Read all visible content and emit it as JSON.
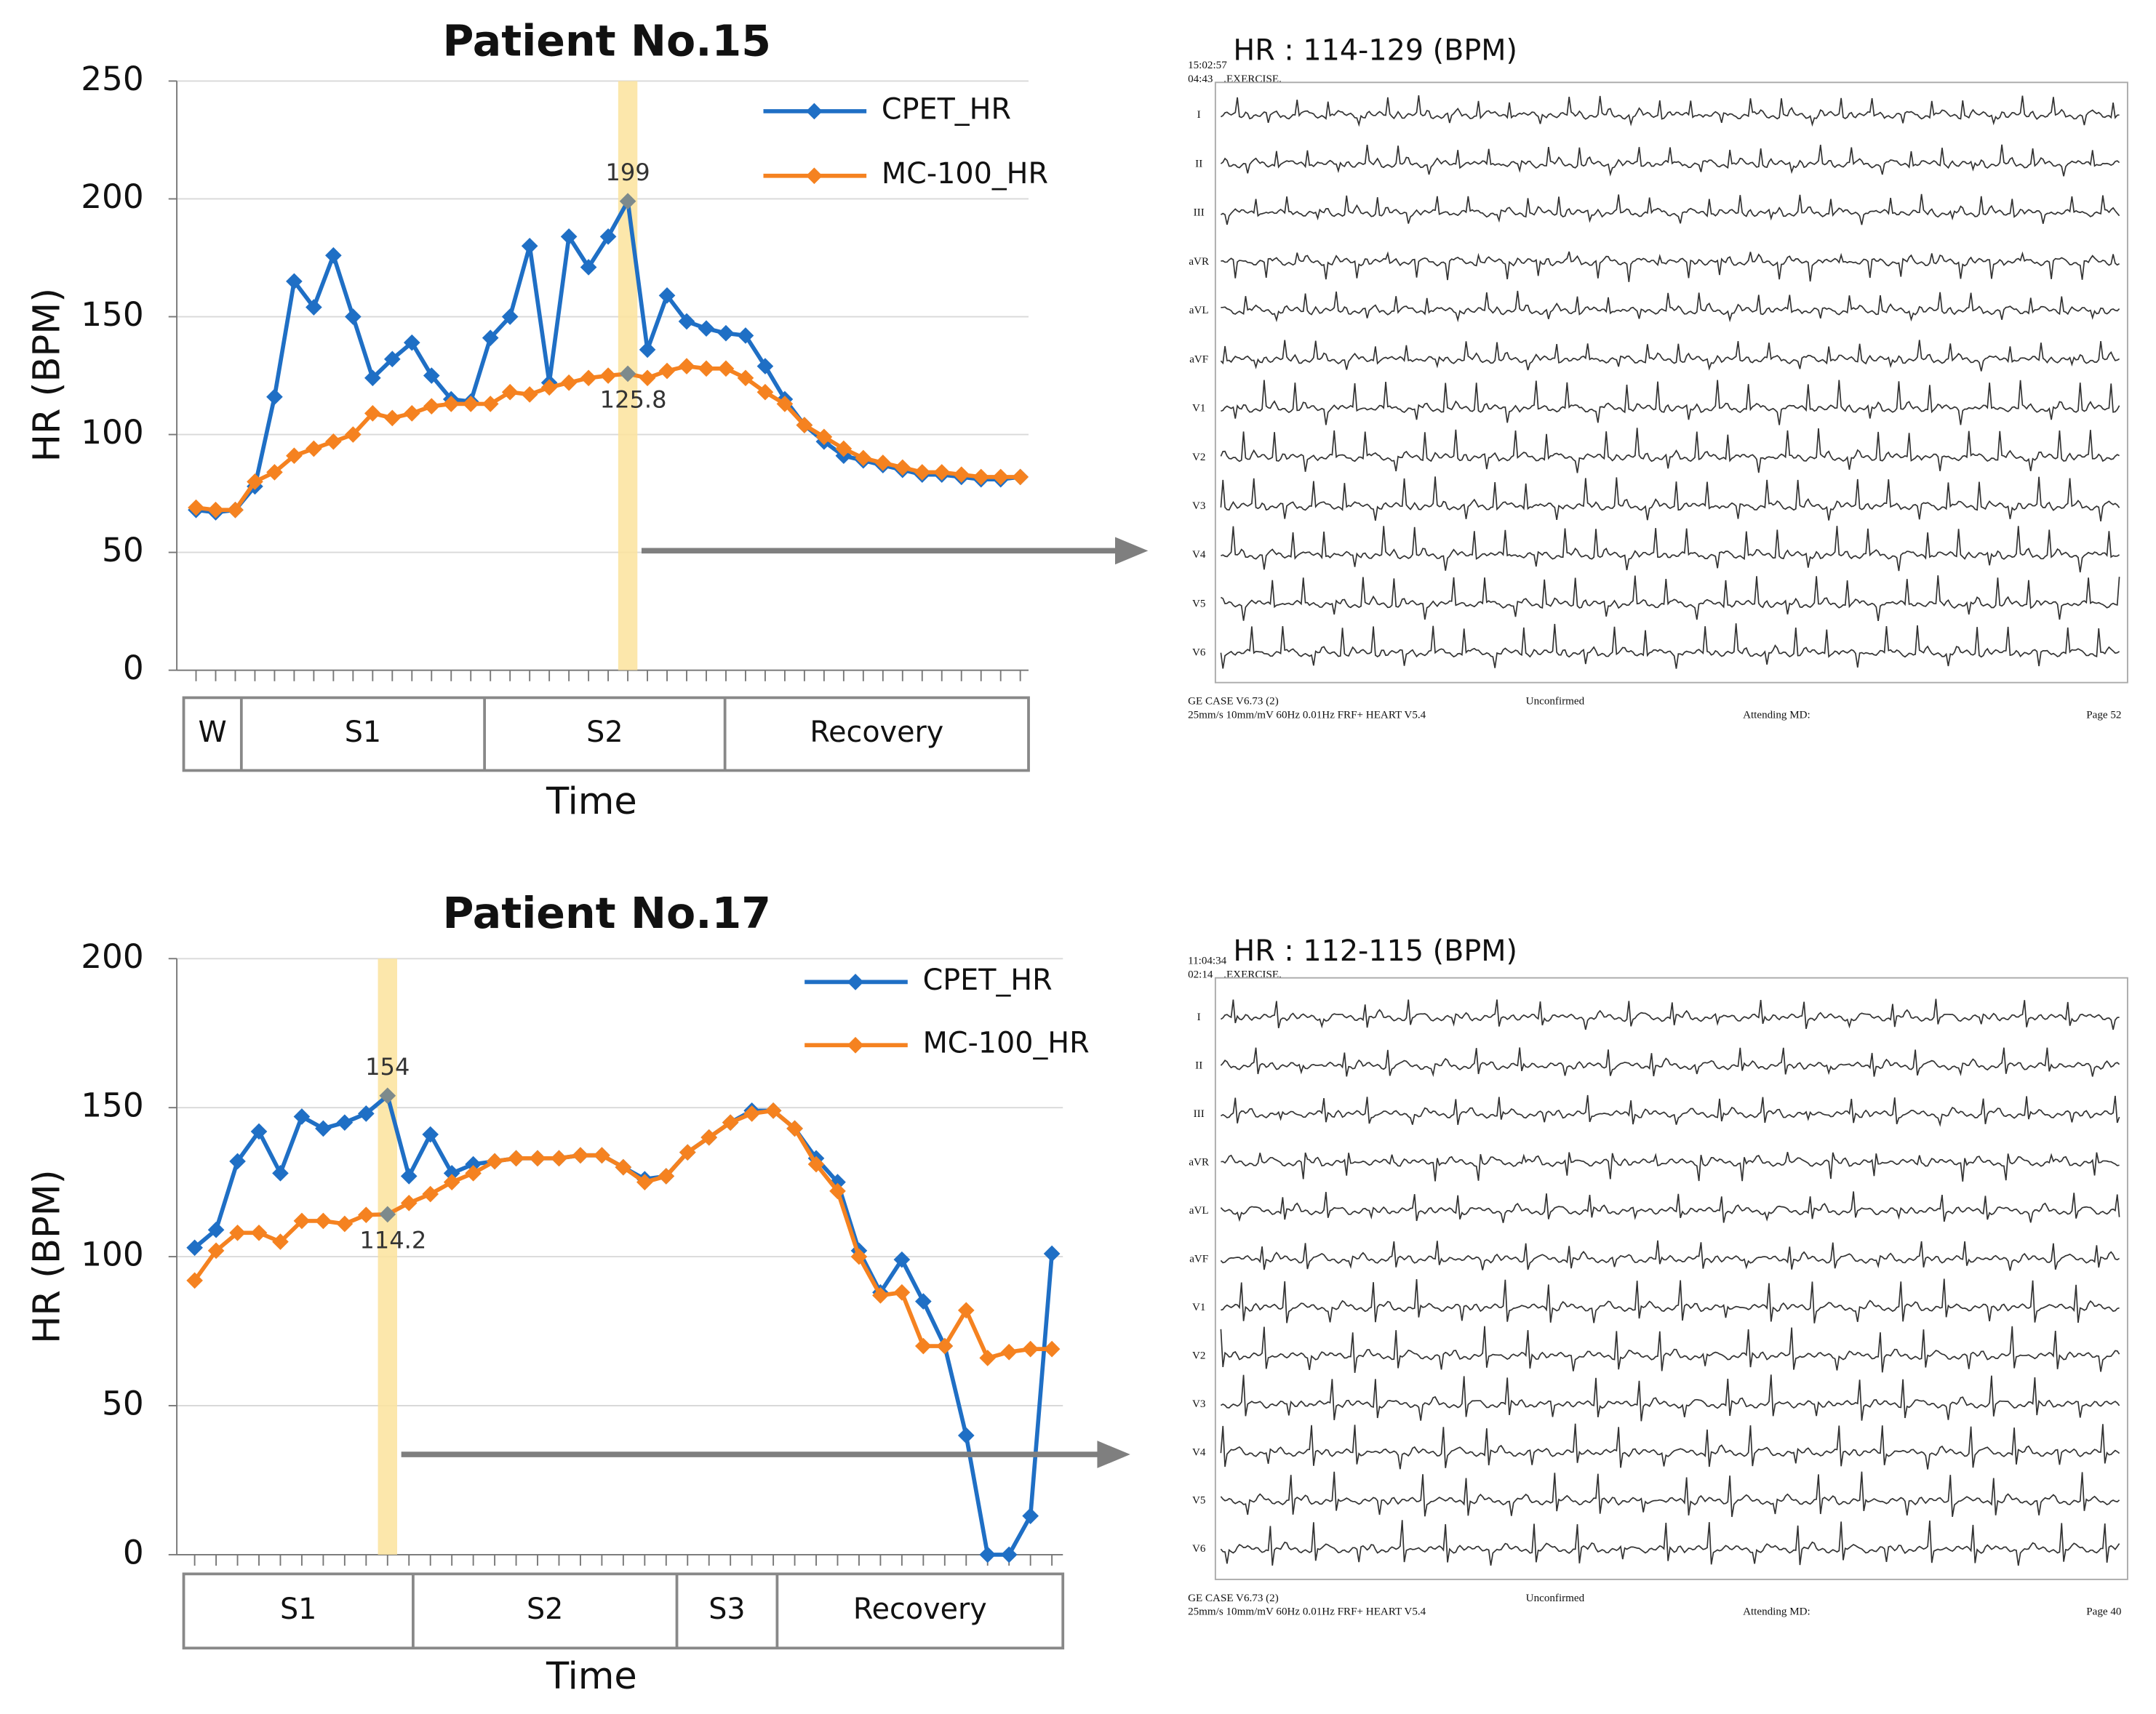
{
  "chart_data": [
    {
      "type": "line",
      "title": "Patient No.15",
      "y_label": "HR (BPM)",
      "x_label": "Time",
      "ylim": [
        0,
        250
      ],
      "yticks": [
        0,
        50,
        100,
        150,
        200,
        250
      ],
      "grid": true,
      "legend": "top-right",
      "stages": [
        "W",
        "S1",
        "S2",
        "Recovery"
      ],
      "series": [
        {
          "name": "CPET_HR",
          "color": "#1f6fc5",
          "values": [
            68,
            67,
            68,
            78,
            116,
            165,
            154,
            176,
            150,
            124,
            132,
            139,
            125,
            115,
            114,
            141,
            150,
            180,
            122,
            184,
            171,
            184,
            199,
            136,
            159,
            148,
            145,
            143,
            142,
            129,
            115,
            104,
            97,
            91,
            89,
            87,
            85,
            83,
            83,
            82,
            81,
            81,
            82
          ]
        },
        {
          "name": "MC-100_HR",
          "color": "#f58220",
          "values": [
            69,
            68,
            68,
            80,
            84,
            91,
            94,
            97,
            100,
            109,
            107,
            109,
            112,
            113,
            113,
            113,
            118,
            117,
            120,
            122,
            124,
            125,
            125.8,
            124,
            127,
            129,
            128,
            128,
            124,
            118,
            113,
            104,
            99,
            94,
            90,
            88,
            86,
            84,
            84,
            83,
            82,
            82,
            82
          ]
        }
      ]
    },
    {
      "type": "line",
      "title": "Patient No.17",
      "y_label": "HR (BPM)",
      "x_label": "Time",
      "ylim": [
        0,
        200
      ],
      "yticks": [
        0,
        50,
        100,
        150,
        200
      ],
      "grid": true,
      "legend": "top-right",
      "stages": [
        "S1",
        "S2",
        "S3",
        "Recovery"
      ],
      "series": [
        {
          "name": "CPET_HR",
          "color": "#1f6fc5",
          "values": [
            103,
            109,
            132,
            142,
            128,
            147,
            143,
            145,
            148,
            154,
            127,
            141,
            128,
            131,
            132,
            133,
            133,
            133,
            134,
            134,
            130,
            126,
            127,
            135,
            140,
            145,
            149,
            149,
            143,
            133,
            125,
            102,
            88,
            99,
            85,
            70,
            40,
            0,
            0,
            13,
            101
          ]
        },
        {
          "name": "MC-100_HR",
          "color": "#f58220",
          "values": [
            92,
            102,
            108,
            108,
            105,
            112,
            112,
            111,
            114,
            114.2,
            118,
            121,
            125,
            128,
            132,
            133,
            133,
            133,
            134,
            134,
            130,
            125,
            127,
            135,
            140,
            145,
            148,
            149,
            143,
            131,
            122,
            100,
            87,
            88,
            70,
            70,
            82,
            66,
            68,
            69,
            69
          ]
        }
      ]
    }
  ],
  "ecg_panels": [
    {
      "hr": "HR : 114-129 (BPM)",
      "clock": "15:02:57",
      "elapsed": "04:43",
      "phase": ".EXERCISE.",
      "leads": [
        "I",
        "II",
        "III",
        "aVR",
        "aVL",
        "aVF",
        "V1",
        "V2",
        "V3",
        "V4",
        "V5",
        "V6"
      ],
      "device": "GE CASE V6.73 (2)",
      "settings": "25mm/s  10mm/mV  60Hz    0.01Hz  FRF+  HEART V5.4",
      "status": "Unconfirmed",
      "attending": "Attending MD:",
      "page": "Page 52"
    },
    {
      "hr": "HR : 112-115 (BPM)",
      "clock": "11:04:34",
      "elapsed": "02:14",
      "phase": ".EXERCISE.",
      "leads": [
        "I",
        "II",
        "III",
        "aVR",
        "aVL",
        "aVF",
        "V1",
        "V2",
        "V3",
        "V4",
        "V5",
        "V6"
      ],
      "device": "GE CASE V6.73 (2)",
      "settings": "25mm/s  10mm/mV  60Hz    0.01Hz  FRF+  HEART V5.4",
      "status": "Unconfirmed",
      "attending": "Attending MD:",
      "page": "Page 40"
    }
  ]
}
